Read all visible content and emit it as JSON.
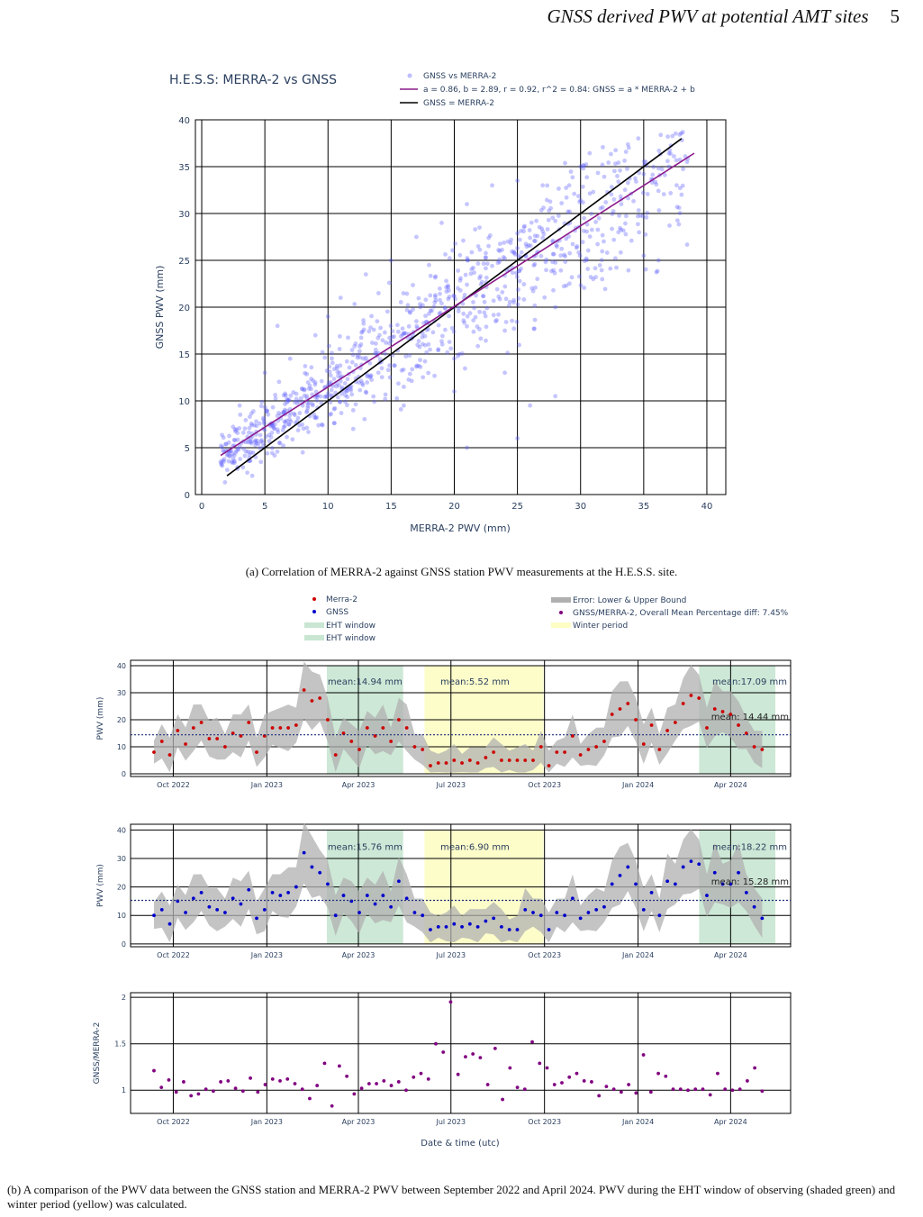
{
  "header": {
    "title": "GNSS derived PWV at potential AMT sites",
    "page": "5"
  },
  "caption_a": "(a) Correlation of MERRA-2 against GNSS station PWV measurements at the H.E.S.S. site.",
  "caption_b": "(b) A comparison of the PWV data between the GNSS station and MERRA-2 PWV between September 2022 and April 2024. PWV during the EHT window of observing (shaded green) and winter period (yellow) was calculated.",
  "colors": {
    "scatter": "#5b5bff",
    "fit": "#8b1a8b",
    "identity": "#000000",
    "merra": "#cc0000",
    "gnss": "#0000cc",
    "ratio": "#800080",
    "band": "#b0b0b0",
    "eht": "#c8e6d2",
    "winter": "#fdfdc4",
    "axis_text": "#2a3f5f"
  },
  "chart_data": [
    {
      "type": "scatter",
      "title": "H.E.S.S: MERRA-2 vs GNSS",
      "xlabel": "MERRA-2 PWV (mm)",
      "ylabel": "GNSS PWV (mm)",
      "xlim": [
        -0.5,
        41.5
      ],
      "ylim": [
        0,
        40
      ],
      "xticks": [
        0,
        5,
        10,
        15,
        20,
        25,
        30,
        35,
        40
      ],
      "yticks": [
        0,
        5,
        10,
        15,
        20,
        25,
        30,
        35,
        40
      ],
      "grid": true,
      "legend_position": "top-right",
      "legend": [
        "GNSS vs MERRA-2",
        "a = 0.86, b = 2.89, r = 0.92, r^2 = 0.84: GNSS = a * MERRA-2 + b",
        "GNSS = MERRA-2"
      ],
      "fit": {
        "a": 0.86,
        "b": 2.89,
        "r": 0.92,
        "r2": 0.84,
        "x_range": [
          1.5,
          39
        ]
      },
      "identity": {
        "x_range": [
          2,
          38
        ]
      },
      "points": [
        [
          1.5,
          3.5
        ],
        [
          2,
          4.2
        ],
        [
          2.5,
          3.8
        ],
        [
          3,
          5.1
        ],
        [
          3.5,
          4.6
        ],
        [
          4,
          6.2
        ],
        [
          4.5,
          5.4
        ],
        [
          5,
          6.9
        ],
        [
          5.5,
          7.6
        ],
        [
          6,
          8.4
        ],
        [
          6.5,
          7.2
        ],
        [
          7,
          9.1
        ],
        [
          7.5,
          10.2
        ],
        [
          8,
          9.5
        ],
        [
          8.5,
          11.3
        ],
        [
          9,
          10.4
        ],
        [
          9.5,
          12.1
        ],
        [
          10,
          11.6
        ],
        [
          10.5,
          13.4
        ],
        [
          11,
          12.5
        ],
        [
          11.5,
          14.2
        ],
        [
          12,
          13.1
        ],
        [
          12.5,
          15.3
        ],
        [
          13,
          14.6
        ],
        [
          13.5,
          16.2
        ],
        [
          14,
          15.1
        ],
        [
          14.5,
          17.3
        ],
        [
          15,
          16.4
        ],
        [
          15.5,
          18.1
        ],
        [
          16,
          17.2
        ],
        [
          16.5,
          19.4
        ],
        [
          17,
          18.5
        ],
        [
          17.5,
          20.2
        ],
        [
          18,
          19.3
        ],
        [
          18.5,
          21.1
        ],
        [
          19,
          20.4
        ],
        [
          19.5,
          22.3
        ],
        [
          20,
          21.2
        ],
        [
          20.5,
          23.1
        ],
        [
          21,
          22.4
        ],
        [
          21.5,
          24.2
        ],
        [
          22,
          23.1
        ],
        [
          22.5,
          25.3
        ],
        [
          23,
          24.4
        ],
        [
          23.5,
          26.1
        ],
        [
          24,
          25.2
        ],
        [
          24.5,
          27.2
        ],
        [
          25,
          26.3
        ],
        [
          25.5,
          28.1
        ],
        [
          26,
          27.4
        ],
        [
          26.5,
          29.2
        ],
        [
          27,
          28.1
        ],
        [
          27.5,
          30.3
        ],
        [
          28,
          29.2
        ],
        [
          28.5,
          31.1
        ],
        [
          29,
          30.2
        ],
        [
          29.5,
          32.1
        ],
        [
          30,
          31.4
        ],
        [
          31,
          32.3
        ],
        [
          32,
          31.2
        ],
        [
          33,
          33.4
        ],
        [
          34,
          32.1
        ],
        [
          35,
          34.2
        ],
        [
          36,
          33.1
        ],
        [
          37,
          35.0
        ],
        [
          38,
          32.0
        ],
        [
          3,
          9.5
        ],
        [
          5,
          13.0
        ],
        [
          7,
          14.5
        ],
        [
          9,
          17.0
        ],
        [
          11,
          21.0
        ],
        [
          13,
          23.5
        ],
        [
          15,
          25.0
        ],
        [
          17,
          27.5
        ],
        [
          19,
          29.0
        ],
        [
          21,
          31.0
        ],
        [
          23,
          33.0
        ],
        [
          25,
          33.5
        ],
        [
          4,
          2.0
        ],
        [
          8,
          4.5
        ],
        [
          12,
          7.0
        ],
        [
          16,
          9.5
        ],
        [
          20,
          11.0
        ],
        [
          24,
          13.0
        ],
        [
          26,
          9.5
        ],
        [
          28,
          10.5
        ],
        [
          21,
          5.0
        ],
        [
          25,
          6.0
        ],
        [
          10,
          19.0
        ],
        [
          6,
          18.0
        ],
        [
          14,
          21.5
        ],
        [
          18,
          24.5
        ],
        [
          22,
          28.5
        ],
        [
          27,
          33.0
        ],
        [
          30,
          35.0
        ],
        [
          33,
          28.0
        ],
        [
          35,
          25.5
        ],
        [
          31,
          23.0
        ],
        [
          28,
          20.0
        ],
        [
          24,
          17.5
        ],
        [
          20,
          14.5
        ],
        [
          16,
          11.5
        ],
        [
          12,
          9.0
        ]
      ]
    },
    {
      "type": "line",
      "ylabel": "PWV (mm)",
      "ylim": [
        -1,
        42
      ],
      "yticks": [
        0,
        10,
        20,
        30,
        40
      ],
      "xlim": [
        "2022-08-20",
        "2024-05-30"
      ],
      "xticks": [
        "Oct 2022",
        "Jan 2023",
        "Apr 2023",
        "Jul 2023",
        "Oct 2023",
        "Jan 2024",
        "Apr 2024"
      ],
      "grid": true,
      "legend_position": "top",
      "legend": [
        "Merra-2",
        "GNSS",
        "EHT window",
        "EHT window",
        "Error: Lower & Upper Bound",
        "GNSS/MERRA-2, Overall Mean Percentage diff: 7.45%",
        "Winter period"
      ],
      "annotations": [
        "mean:14.94 mm",
        "mean:5.52 mm",
        "mean:17.09 mm",
        "mean: 14.44 mm"
      ],
      "overall_mean": 14.44,
      "series": [
        {
          "name": "Merra-2",
          "values": [
            8,
            12,
            7,
            16,
            11,
            17,
            19,
            13,
            13,
            10,
            15,
            14,
            19,
            8,
            14,
            17,
            17,
            17,
            18,
            31,
            27,
            28,
            20,
            7,
            15,
            12,
            9,
            17,
            14,
            17,
            12,
            20,
            17,
            10,
            9,
            3,
            4,
            4,
            5,
            4,
            5,
            4,
            6,
            8,
            5,
            5,
            5,
            5,
            5,
            10,
            3,
            8,
            8,
            14,
            7,
            9,
            10,
            12,
            22,
            24,
            26,
            20,
            11,
            18,
            9,
            16,
            19,
            26,
            29,
            28,
            17,
            24,
            23,
            22,
            18,
            15,
            10,
            9
          ]
        }
      ]
    },
    {
      "type": "line",
      "ylabel": "PWV (mm)",
      "ylim": [
        -1,
        42
      ],
      "yticks": [
        0,
        10,
        20,
        30,
        40
      ],
      "xticks": [
        "Oct 2022",
        "Jan 2023",
        "Apr 2023",
        "Jul 2023",
        "Oct 2023",
        "Jan 2024",
        "Apr 2024"
      ],
      "grid": true,
      "annotations": [
        "mean:15.76 mm",
        "mean:6.90 mm",
        "mean:18.22 mm",
        "mean: 15.28 mm"
      ],
      "overall_mean": 15.28,
      "series": [
        {
          "name": "GNSS",
          "values": [
            10,
            12,
            7,
            15,
            11,
            16,
            18,
            13,
            12,
            11,
            16,
            14,
            19,
            9,
            12,
            18,
            17,
            18,
            20,
            32,
            27,
            25,
            21,
            10,
            17,
            15,
            11,
            17,
            14,
            17,
            13,
            22,
            16,
            11,
            10,
            5,
            6,
            6,
            7,
            6,
            7,
            6,
            8,
            9,
            6,
            5,
            5,
            12,
            11,
            10,
            5,
            11,
            10,
            16,
            9,
            11,
            12,
            13,
            21,
            24,
            27,
            21,
            12,
            18,
            10,
            22,
            21,
            27,
            29,
            28,
            17,
            25,
            21,
            21,
            25,
            18,
            13,
            9
          ]
        }
      ]
    },
    {
      "type": "scatter",
      "xlabel": "Date & time (utc)",
      "ylabel": "GNSS/MERRA-2",
      "ylim": [
        0.75,
        2.05
      ],
      "yticks": [
        1,
        1.5,
        2
      ],
      "xticks": [
        "Oct 2022",
        "Jan 2023",
        "Apr 2023",
        "Jul 2023",
        "Oct 2023",
        "Jan 2024",
        "Apr 2024"
      ],
      "grid": true,
      "values": [
        1.21,
        1.03,
        1.11,
        0.98,
        1.09,
        0.94,
        0.96,
        1.01,
        0.99,
        1.09,
        1.1,
        1.02,
        0.99,
        1.13,
        0.98,
        1.06,
        1.12,
        1.1,
        1.12,
        1.07,
        1.01,
        0.91,
        1.05,
        1.29,
        0.83,
        1.26,
        1.15,
        0.96,
        1.02,
        1.07,
        1.07,
        1.1,
        1.05,
        1.09,
        1.0,
        1.14,
        1.18,
        1.12,
        1.5,
        1.41,
        1.95,
        1.17,
        1.36,
        1.39,
        1.35,
        1.06,
        1.45,
        0.9,
        1.24,
        1.03,
        1.01,
        1.52,
        1.29,
        1.24,
        1.06,
        1.08,
        1.14,
        1.18,
        1.1,
        1.09,
        0.94,
        1.04,
        1.01,
        0.98,
        1.06,
        0.97,
        1.38,
        0.98,
        1.18,
        1.15,
        1.01,
        1.01,
        1.0,
        1.01,
        1.01,
        0.95,
        1.18,
        1.01,
        1.0,
        1.01,
        1.1,
        1.24,
        0.99
      ]
    }
  ]
}
